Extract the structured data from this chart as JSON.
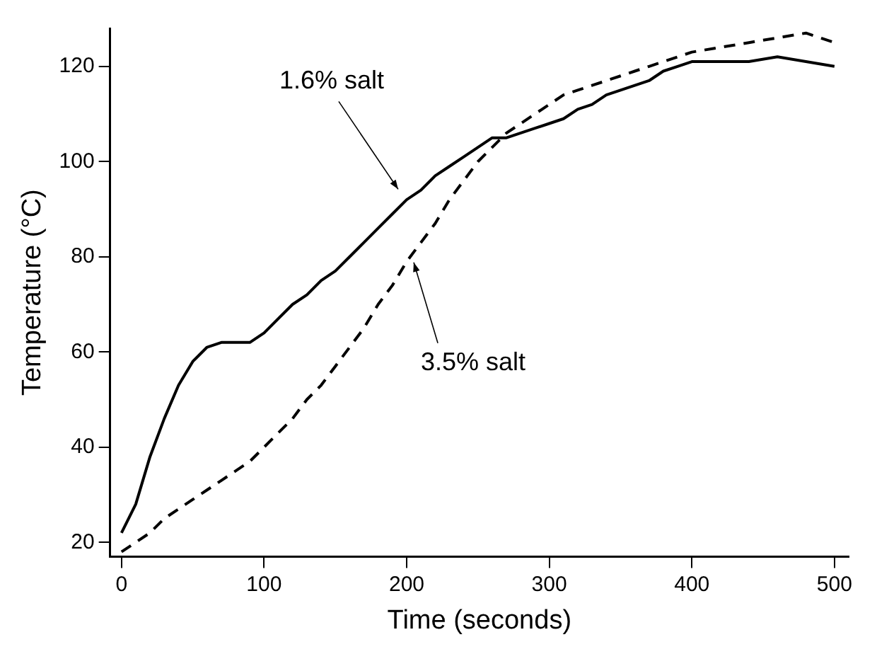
{
  "chart_data": {
    "type": "line",
    "xlabel": "Time (seconds)",
    "ylabel": "Temperature (°C)",
    "xlim": [
      -8,
      510
    ],
    "ylim": [
      17,
      128
    ],
    "xticks": [
      0,
      100,
      200,
      300,
      400,
      500
    ],
    "yticks": [
      20,
      40,
      60,
      80,
      100,
      120
    ],
    "grid": false,
    "legend": false,
    "marker": "none",
    "x": [
      0,
      10,
      20,
      30,
      40,
      50,
      60,
      70,
      80,
      90,
      100,
      110,
      120,
      130,
      140,
      150,
      160,
      170,
      180,
      190,
      200,
      210,
      220,
      230,
      240,
      250,
      260,
      270,
      280,
      290,
      300,
      310,
      320,
      330,
      340,
      350,
      360,
      370,
      380,
      390,
      400,
      420,
      440,
      460,
      480,
      500
    ],
    "series": [
      {
        "color": "#000000",
        "line_style": "solid",
        "values": [
          22,
          28,
          38,
          46,
          53,
          58,
          61,
          62,
          62,
          62,
          64,
          67,
          70,
          72,
          75,
          77,
          80,
          83,
          86,
          89,
          92,
          94,
          97,
          99,
          101,
          103,
          105,
          105,
          106,
          107,
          108,
          109,
          111,
          112,
          114,
          115,
          116,
          117,
          119,
          120,
          121,
          121,
          121,
          122,
          121,
          120
        ]
      },
      {
        "color": "#000000",
        "line_style": "dashed",
        "values": [
          18,
          20,
          22,
          25,
          27,
          29,
          31,
          33,
          35,
          37,
          40,
          43,
          46,
          50,
          53,
          57,
          61,
          65,
          70,
          74,
          79,
          83,
          87,
          92,
          96,
          100,
          103,
          106,
          108,
          110,
          112,
          114,
          115,
          116,
          117,
          118,
          119,
          120,
          121,
          122,
          123,
          124,
          125,
          126,
          127,
          125
        ]
      }
    ],
    "annotations": [
      {
        "text": "1.6% salt",
        "x": 197,
        "y": 93
      },
      {
        "text": "3.5% salt",
        "x": 202,
        "y": 80
      }
    ]
  }
}
